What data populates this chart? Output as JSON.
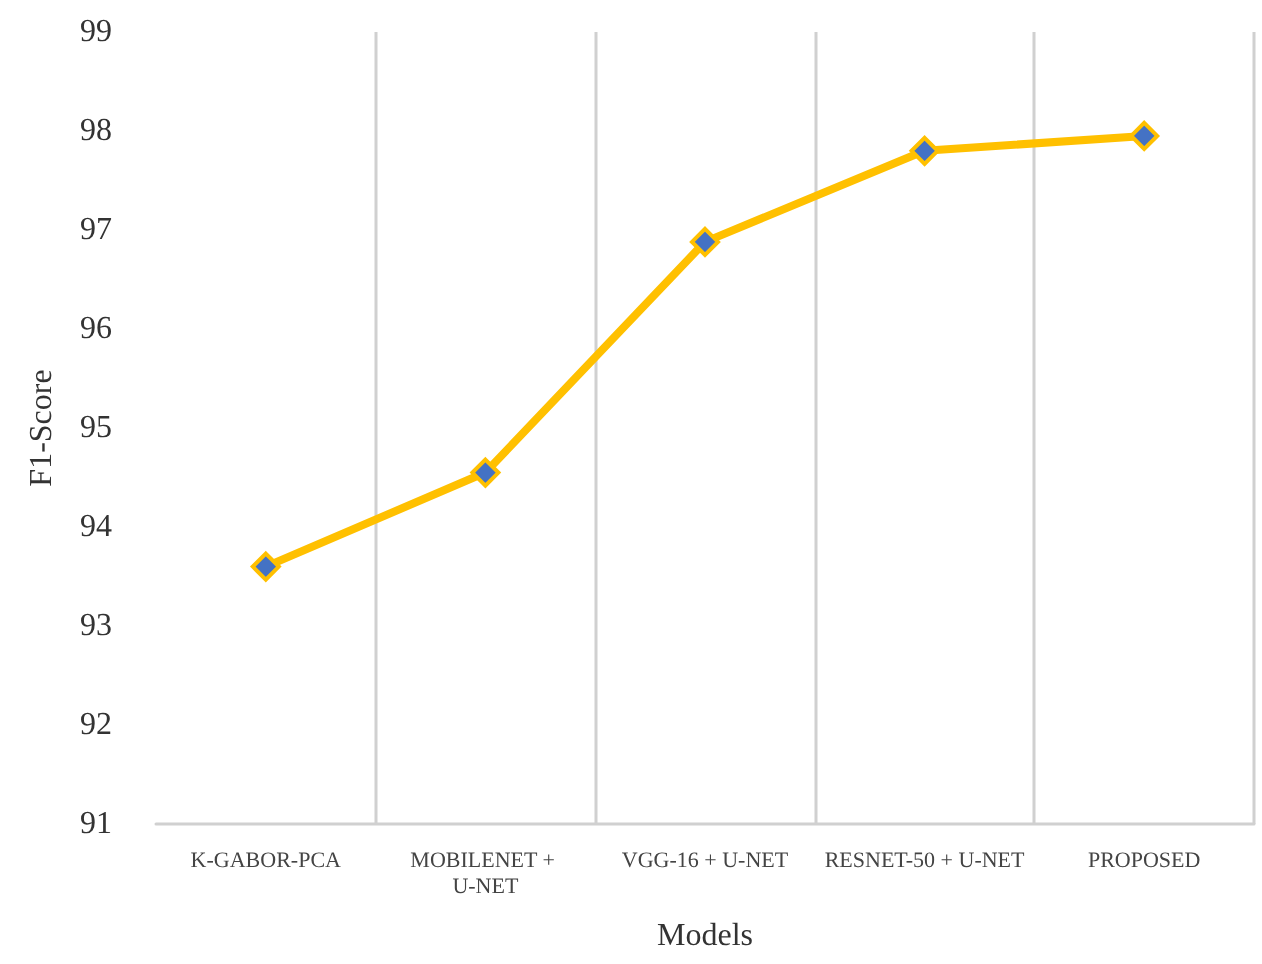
{
  "chart_data": {
    "type": "line",
    "xlabel": "Models",
    "ylabel": "F1-Score",
    "categories": [
      "K-GABOR-PCA",
      "MOBILENET + U-NET",
      "VGG-16 + U-NET",
      "RESNET-50 + U-NET",
      "PROPOSED"
    ],
    "series": [
      {
        "color": "#ffc000",
        "values": [
          93.6,
          94.55,
          96.88,
          97.8,
          97.95
        ]
      }
    ],
    "ylim": [
      91,
      99
    ],
    "yticks": [
      91,
      92,
      93,
      94,
      95,
      96,
      97,
      98,
      99
    ],
    "grid": "x",
    "marker": "diamond",
    "line_style": "solid"
  }
}
